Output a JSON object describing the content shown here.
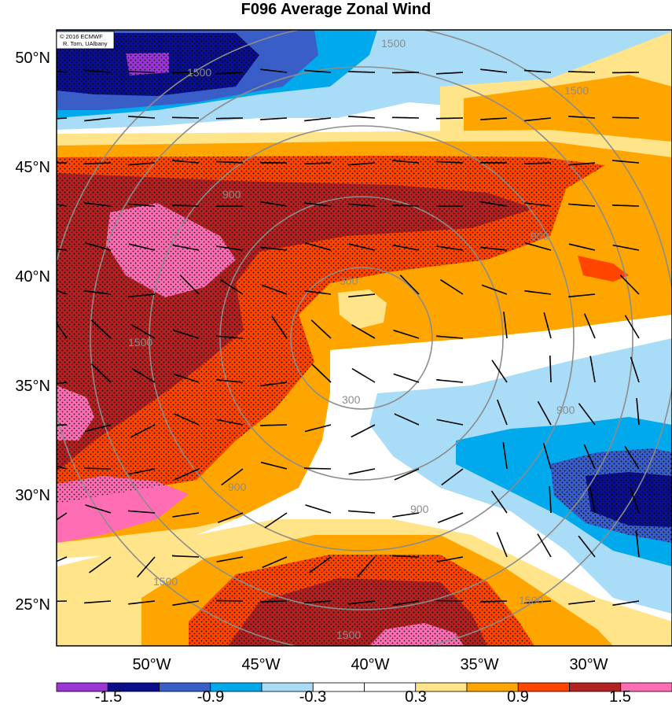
{
  "title": "F096 Average Zonal Wind",
  "credit": [
    "© 2016 ECMWF",
    "R. Torn, UAlbany"
  ],
  "lat_labels": [
    "50°N",
    "45°N",
    "40°N",
    "35°N",
    "30°N",
    "25°N"
  ],
  "lon_labels": [
    "50°W",
    "45°W",
    "40°W",
    "35°W",
    "30°W"
  ],
  "colorbar": {
    "ticks": [
      "-1.5",
      "-0.9",
      "-0.3",
      "0.3",
      "0.9",
      "1.5"
    ],
    "colors": [
      "#9a35d6",
      "#0a0f8c",
      "#3a5ec8",
      "#00a9ec",
      "#a9dcf6",
      "#ffffff",
      "#ffffff",
      "#ffe48a",
      "#ffa500",
      "#ff4500",
      "#b22222",
      "#ff6eb4"
    ]
  },
  "range_ring_labels": [
    "300",
    "900",
    "900",
    "900",
    "900",
    "900",
    "1500",
    "1500",
    "1500",
    "1500",
    "1500",
    "1500",
    "1500"
  ],
  "colors": {
    "neg_dark": "#0a0f8c",
    "neg_mid": "#3a5ec8",
    "neg_light": "#00a9ec",
    "neg_pale": "#a9dcf6",
    "pos_pale": "#ffe48a",
    "pos_mid": "#ffa500",
    "pos_red": "#ff4500",
    "pos_dark": "#b22222",
    "pos_pink": "#ff6eb4",
    "ring": "#8c8c8c"
  }
}
